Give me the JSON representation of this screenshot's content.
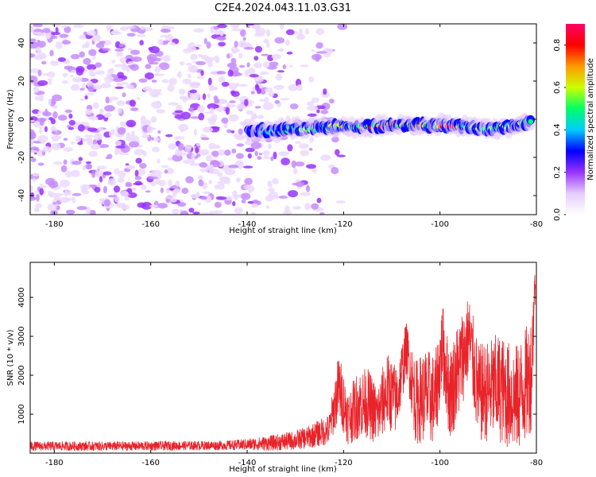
{
  "title": "C2E4.2024.043.11.03.G31",
  "colors": {
    "line": "#e8242a",
    "noise": "#9933ff",
    "colormap": [
      "#ffffff",
      "#e6ccff",
      "#9933ff",
      "#0000ff",
      "#00ccff",
      "#00ff66",
      "#ccff00",
      "#ff9900",
      "#ff0000",
      "#ff0066"
    ]
  },
  "chart_data": [
    {
      "type": "heatmap",
      "xlabel": "Height of straight line (km)",
      "ylabel": "Frequency (Hz)",
      "xlim": [
        -185,
        -80
      ],
      "ylim": [
        -50,
        50
      ],
      "xticks": [
        -180,
        -160,
        -140,
        -120,
        -100,
        -80
      ],
      "yticks": [
        -40,
        -20,
        0,
        20,
        40
      ],
      "colorbar": {
        "label": "Normalized spectral amplitude",
        "range": [
          0,
          0.9
        ],
        "ticks": [
          0.0,
          0.2,
          0.4,
          0.6,
          0.8
        ]
      },
      "noise_region": {
        "x": [
          -185,
          -128
        ],
        "amplitude": 0.15
      },
      "signal_track": {
        "x": [
          -140,
          -137,
          -134,
          -130,
          -126,
          -122,
          -118,
          -114,
          -110,
          -106,
          -102,
          -98,
          -94,
          -90,
          -86,
          -82,
          -81
        ],
        "frequency": [
          -5,
          -6,
          -6,
          -5,
          -5,
          -4,
          -4,
          -4,
          -3,
          -3,
          -3,
          -3,
          -4,
          -5,
          -4,
          -2,
          -1
        ],
        "amplitude": [
          0.28,
          0.38,
          0.45,
          0.55,
          0.58,
          0.6,
          0.62,
          0.7,
          0.78,
          0.65,
          0.6,
          0.85,
          0.55,
          0.5,
          0.55,
          0.55,
          0.5
        ]
      }
    },
    {
      "type": "line",
      "xlabel": "Height of straight line (km)",
      "ylabel": "SNR (10 * v/v)",
      "xlim": [
        -185,
        -80
      ],
      "ylim": [
        0,
        4900
      ],
      "xticks": [
        -180,
        -160,
        -140,
        -120,
        -100,
        -80
      ],
      "yticks": [
        1000,
        2000,
        3000,
        4000
      ],
      "series": [
        {
          "x": [
            -185,
            -175,
            -165,
            -155,
            -145,
            -140,
            -135,
            -130,
            -127,
            -125,
            -123,
            -121,
            -119,
            -117,
            -115,
            -113,
            -111,
            -109,
            -107,
            -105,
            -103,
            -101,
            -99.5,
            -98,
            -96,
            -94,
            -92,
            -90,
            -88,
            -86,
            -84,
            -82,
            -81,
            -80.5,
            -80.2
          ],
          "center": [
            180,
            180,
            180,
            190,
            200,
            220,
            260,
            330,
            420,
            520,
            600,
            1700,
            900,
            1250,
            1300,
            950,
            1600,
            1350,
            2700,
            1300,
            1500,
            1350,
            2800,
            1500,
            2200,
            3000,
            1500,
            1600,
            1700,
            1500,
            1400,
            1800,
            2100,
            3800,
            4500
          ],
          "range": [
            120,
            120,
            120,
            120,
            120,
            150,
            200,
            250,
            300,
            350,
            400,
            900,
            700,
            900,
            900,
            800,
            1000,
            900,
            700,
            1100,
            1200,
            1200,
            1100,
            1200,
            1300,
            1100,
            1300,
            1300,
            1400,
            1400,
            1400,
            1500,
            1500,
            900,
            500
          ]
        }
      ]
    }
  ]
}
